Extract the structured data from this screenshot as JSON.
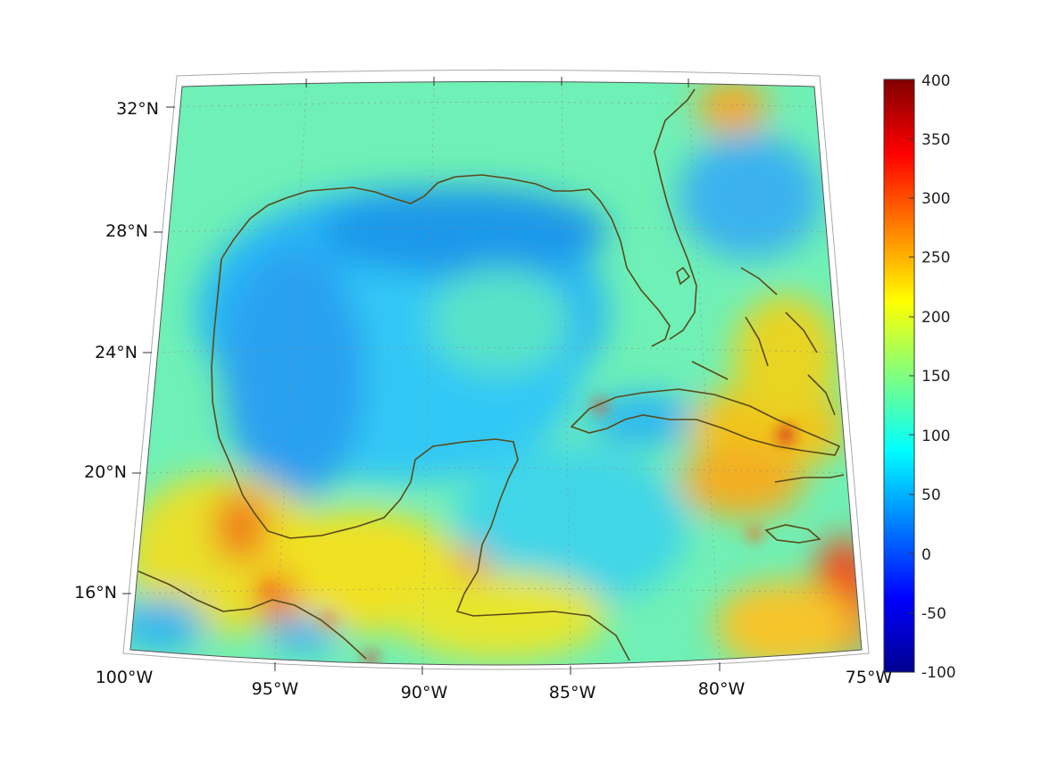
{
  "map": {
    "lon_labels": [
      "100°W",
      "95°W",
      "90°W",
      "85°W",
      "80°W",
      "75°W"
    ],
    "lat_labels": [
      "16°N",
      "20°N",
      "24°N",
      "28°N",
      "32°N"
    ],
    "region": {
      "lon_range": [
        -100,
        -75
      ],
      "lat_range": [
        14,
        33
      ]
    },
    "projection": "conic",
    "coastline_color": "#5a4a1a",
    "grid": true
  },
  "colorbar": {
    "ticks": [
      "400",
      "350",
      "300",
      "250",
      "200",
      "150",
      "100",
      "50",
      "0",
      "-50",
      "-100"
    ],
    "range": [
      -100,
      400
    ],
    "colormap": "jet",
    "stops": [
      "#00008f",
      "#0000ff",
      "#00ffff",
      "#ffff00",
      "#ff0000",
      "#800000"
    ]
  }
}
